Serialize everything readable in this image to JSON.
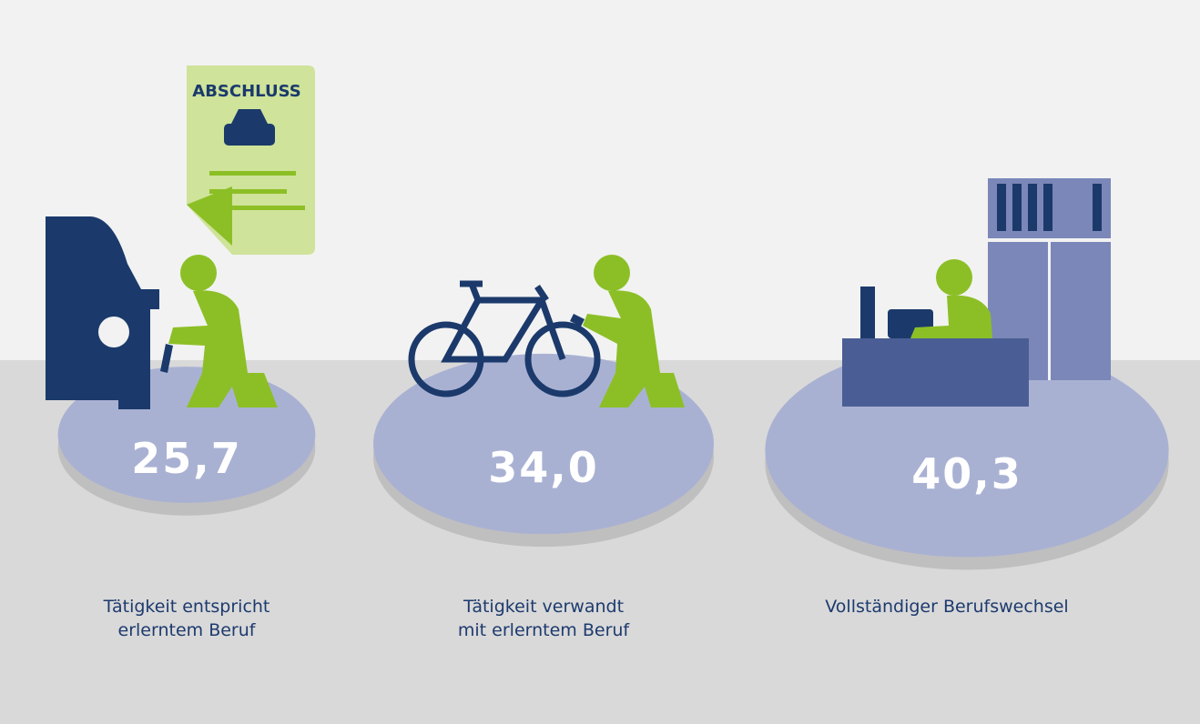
{
  "chart_data": {
    "type": "bubble",
    "annotation": "ABSCHLUSS",
    "categories": [
      "Tätigkeit entspricht\nerlerntem Beruf",
      "Tätigkeit verwandt\nmit erlerntem Beruf",
      "Vollständiger Berufswechsel"
    ],
    "values": [
      25.7,
      34.0,
      40.3
    ],
    "value_labels": [
      "25,7",
      "34,0",
      "40,3"
    ],
    "color": "#a9b1d3"
  }
}
